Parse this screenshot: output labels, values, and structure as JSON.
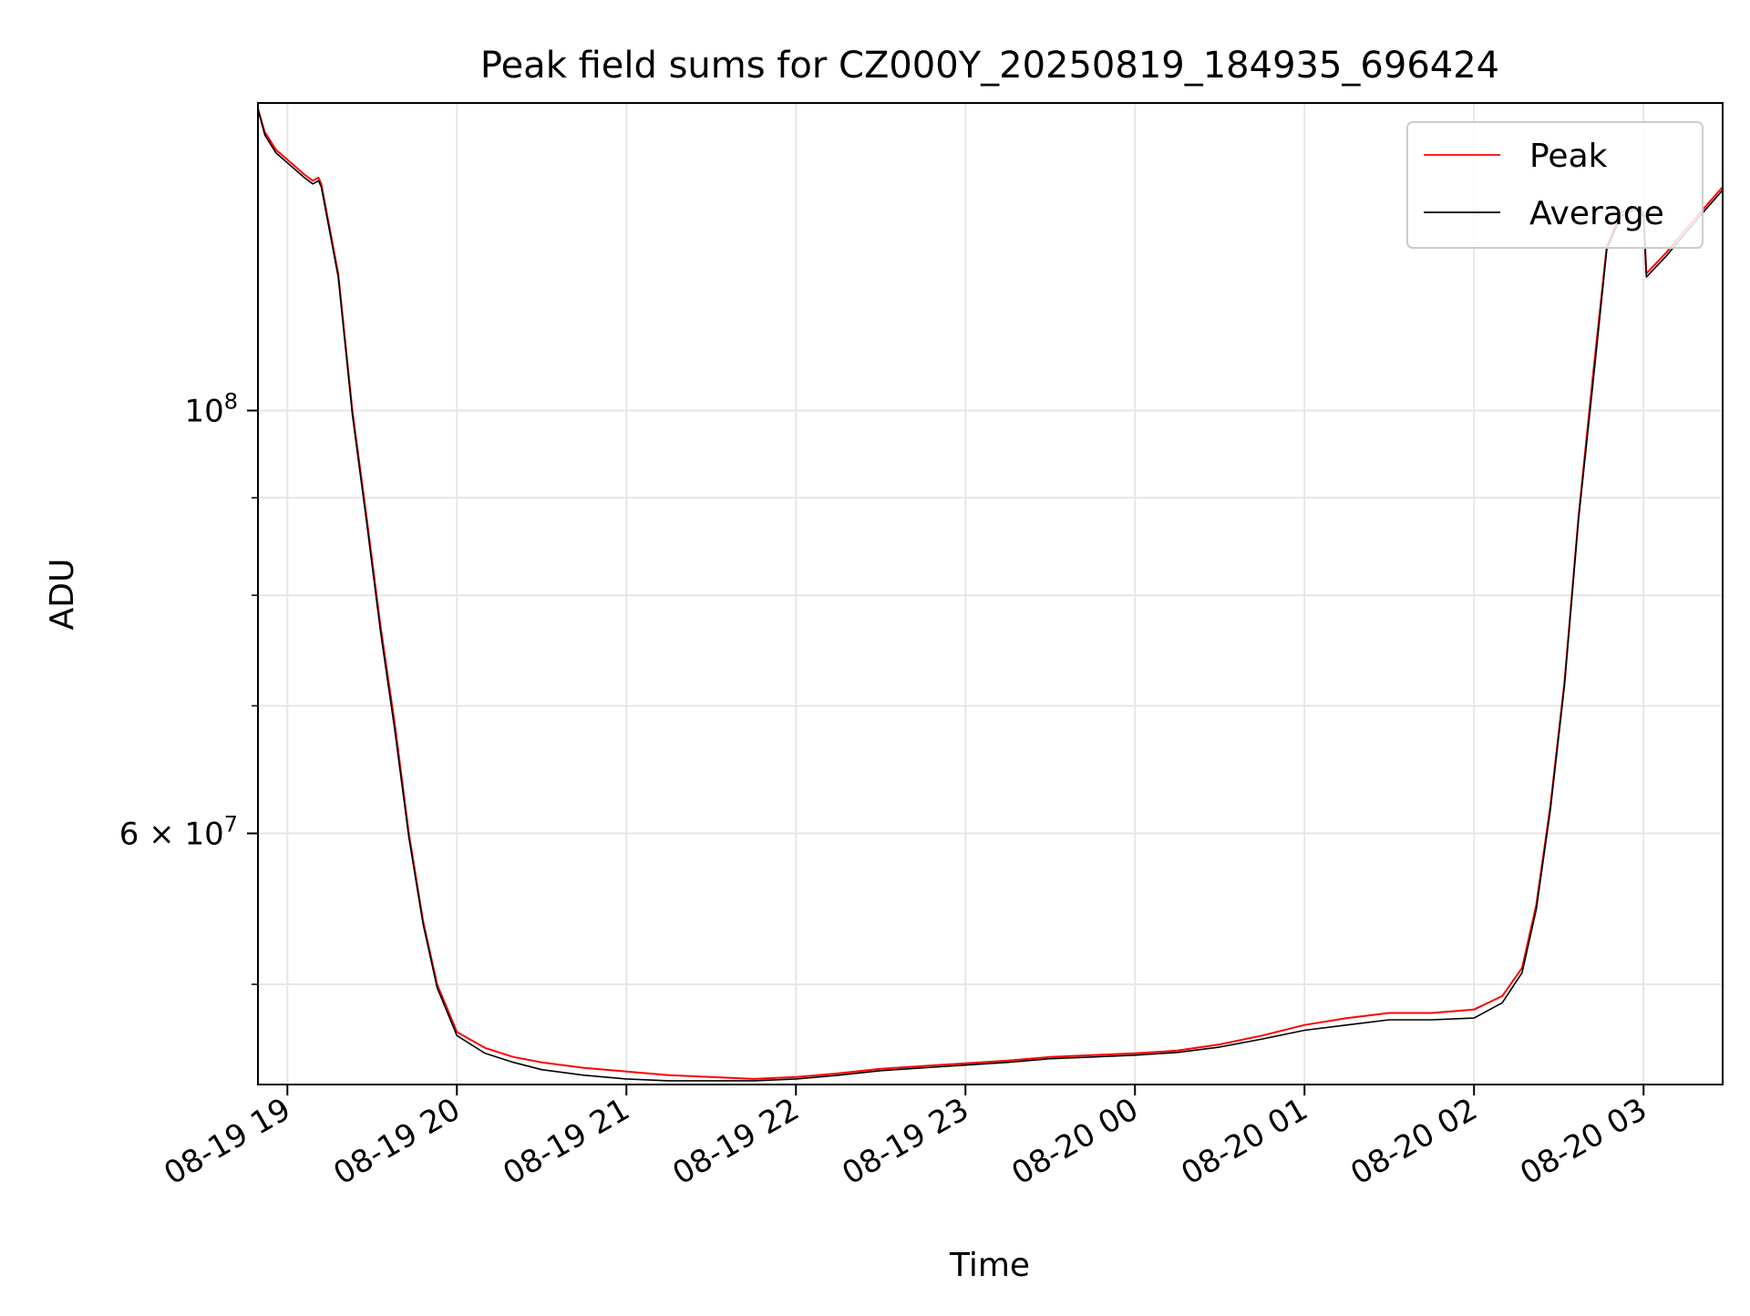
{
  "chart_data": {
    "type": "line",
    "title": "Peak field sums for CZ000Y_20250819_184935_696424",
    "xlabel": "Time",
    "ylabel": "ADU",
    "y_scale": "log",
    "ylim": [
      44300000,
      145000000
    ],
    "xlim": [
      "2025-08-19 18:49:35",
      "2025-08-20 03:28:00"
    ],
    "x_tick_labels": [
      "08-19 19",
      "08-19 20",
      "08-19 21",
      "08-19 22",
      "08-19 23",
      "08-20 00",
      "08-20 01",
      "08-20 02",
      "08-20 03"
    ],
    "x_tick_times": [
      "2025-08-19 19:00",
      "2025-08-19 20:00",
      "2025-08-19 21:00",
      "2025-08-19 22:00",
      "2025-08-19 23:00",
      "2025-08-20 00:00",
      "2025-08-20 01:00",
      "2025-08-20 02:00",
      "2025-08-20 03:00"
    ],
    "y_major_ticks": [
      {
        "value": 100000000,
        "base": "10",
        "exp": "8"
      },
      {
        "value": 60000000,
        "base": "6 × 10",
        "exp": "7"
      }
    ],
    "y_minor_ticks": [
      50000000,
      70000000,
      80000000,
      90000000
    ],
    "grid": true,
    "legend": {
      "position": "top-right",
      "entries": [
        "Peak",
        "Average"
      ]
    },
    "series": [
      {
        "name": "Peak",
        "color": "#ff0000",
        "x": [
          "2025-08-19 18:49",
          "2025-08-19 18:52",
          "2025-08-19 18:56",
          "2025-08-19 19:01",
          "2025-08-19 19:06",
          "2025-08-19 19:09",
          "2025-08-19 19:11",
          "2025-08-19 19:12",
          "2025-08-19 19:18",
          "2025-08-19 19:23",
          "2025-08-19 19:28",
          "2025-08-19 19:33",
          "2025-08-19 19:38",
          "2025-08-19 19:43",
          "2025-08-19 19:48",
          "2025-08-19 19:53",
          "2025-08-19 20:00",
          "2025-08-19 20:10",
          "2025-08-19 20:20",
          "2025-08-19 20:30",
          "2025-08-19 20:45",
          "2025-08-19 21:00",
          "2025-08-19 21:15",
          "2025-08-19 21:30",
          "2025-08-19 21:45",
          "2025-08-19 22:00",
          "2025-08-19 22:15",
          "2025-08-19 22:30",
          "2025-08-19 22:45",
          "2025-08-19 23:00",
          "2025-08-19 23:15",
          "2025-08-19 23:30",
          "2025-08-19 23:45",
          "2025-08-20 00:00",
          "2025-08-20 00:15",
          "2025-08-20 00:30",
          "2025-08-20 00:45",
          "2025-08-20 01:00",
          "2025-08-20 01:15",
          "2025-08-20 01:30",
          "2025-08-20 01:45",
          "2025-08-20 02:00",
          "2025-08-20 02:10",
          "2025-08-20 02:17",
          "2025-08-20 02:22",
          "2025-08-20 02:27",
          "2025-08-20 02:32",
          "2025-08-20 02:37",
          "2025-08-20 02:42",
          "2025-08-20 02:47",
          "2025-08-20 02:52",
          "2025-08-20 02:57",
          "2025-08-20 03:00",
          "2025-08-20 03:01",
          "2025-08-20 03:08",
          "2025-08-20 03:15",
          "2025-08-20 03:22",
          "2025-08-20 03:28"
        ],
        "values": [
          145000000,
          140000000,
          137000000,
          135000000,
          133000000,
          132000000,
          132500000,
          131500000,
          118000000,
          100000000,
          88000000,
          77000000,
          68500000,
          60000000,
          54000000,
          50000000,
          47200000,
          46300000,
          45800000,
          45500000,
          45200000,
          45000000,
          44800000,
          44700000,
          44600000,
          44700000,
          44900000,
          45150000,
          45300000,
          45450000,
          45600000,
          45800000,
          45900000,
          46000000,
          46150000,
          46500000,
          47000000,
          47600000,
          48000000,
          48300000,
          48300000,
          48500000,
          49300000,
          51000000,
          55000000,
          62000000,
          72000000,
          88000000,
          104000000,
          122000000,
          127000000,
          128000000,
          127000000,
          118000000,
          121000000,
          124500000,
          128000000,
          131000000
        ]
      },
      {
        "name": "Average",
        "color": "#000000",
        "x": [
          "2025-08-19 18:49",
          "2025-08-19 18:52",
          "2025-08-19 18:56",
          "2025-08-19 19:01",
          "2025-08-19 19:06",
          "2025-08-19 19:09",
          "2025-08-19 19:11",
          "2025-08-19 19:12",
          "2025-08-19 19:18",
          "2025-08-19 19:23",
          "2025-08-19 19:28",
          "2025-08-19 19:33",
          "2025-08-19 19:38",
          "2025-08-19 19:43",
          "2025-08-19 19:48",
          "2025-08-19 19:53",
          "2025-08-19 20:00",
          "2025-08-19 20:10",
          "2025-08-19 20:20",
          "2025-08-19 20:30",
          "2025-08-19 20:45",
          "2025-08-19 21:00",
          "2025-08-19 21:15",
          "2025-08-19 21:30",
          "2025-08-19 21:45",
          "2025-08-19 22:00",
          "2025-08-19 22:15",
          "2025-08-19 22:30",
          "2025-08-19 22:45",
          "2025-08-19 23:00",
          "2025-08-19 23:15",
          "2025-08-19 23:30",
          "2025-08-19 23:45",
          "2025-08-20 00:00",
          "2025-08-20 00:15",
          "2025-08-20 00:30",
          "2025-08-20 00:45",
          "2025-08-20 01:00",
          "2025-08-20 01:15",
          "2025-08-20 01:30",
          "2025-08-20 01:45",
          "2025-08-20 02:00",
          "2025-08-20 02:10",
          "2025-08-20 02:17",
          "2025-08-20 02:22",
          "2025-08-20 02:27",
          "2025-08-20 02:32",
          "2025-08-20 02:37",
          "2025-08-20 02:42",
          "2025-08-20 02:47",
          "2025-08-20 02:52",
          "2025-08-20 02:57",
          "2025-08-20 03:00",
          "2025-08-20 03:01",
          "2025-08-20 03:08",
          "2025-08-20 03:15",
          "2025-08-20 03:22",
          "2025-08-20 03:28"
        ],
        "values": [
          145000000,
          139500000,
          136500000,
          134500000,
          132500000,
          131500000,
          132000000,
          131000000,
          117500000,
          99500000,
          87500000,
          76500000,
          68000000,
          59700000,
          53800000,
          49800000,
          47000000,
          46000000,
          45500000,
          45100000,
          44800000,
          44600000,
          44500000,
          44500000,
          44500000,
          44600000,
          44800000,
          45050000,
          45200000,
          45350000,
          45500000,
          45700000,
          45800000,
          45900000,
          46050000,
          46350000,
          46800000,
          47300000,
          47600000,
          47900000,
          47900000,
          48000000,
          48900000,
          50700000,
          54700000,
          61700000,
          71700000,
          87700000,
          103000000,
          121500000,
          126500000,
          127500000,
          126500000,
          117500000,
          120500000,
          124000000,
          127500000,
          130500000
        ]
      }
    ]
  }
}
